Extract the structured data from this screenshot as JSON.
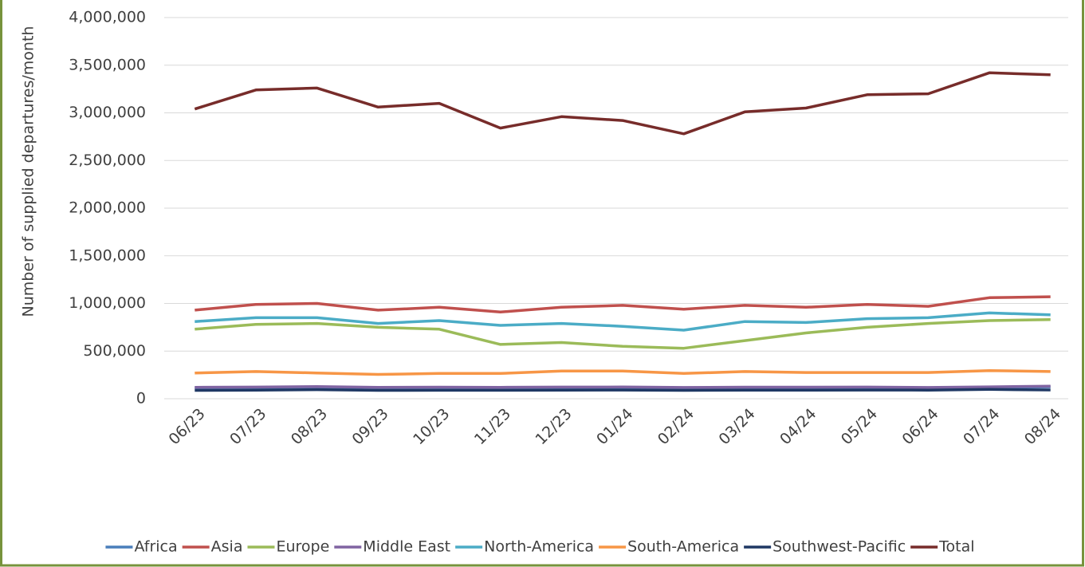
{
  "chart_data": {
    "type": "line",
    "y_label": "Number of supplied departures/month",
    "categories": [
      "06/23",
      "07/23",
      "08/23",
      "09/23",
      "10/23",
      "11/23",
      "12/23",
      "01/24",
      "02/24",
      "03/24",
      "04/24",
      "05/24",
      "06/24",
      "07/24",
      "08/24"
    ],
    "series": [
      {
        "name": "Africa",
        "color": "#4a7ebb",
        "values": [
          115000,
          117000,
          122000,
          115000,
          116000,
          116000,
          117000,
          118000,
          112000,
          116000,
          116000,
          117000,
          112000,
          120000,
          125000
        ]
      },
      {
        "name": "Asia",
        "color": "#c0504d",
        "values": [
          930000,
          990000,
          1000000,
          930000,
          960000,
          910000,
          960000,
          980000,
          940000,
          980000,
          960000,
          990000,
          970000,
          1060000,
          1070000
        ]
      },
      {
        "name": "Europe",
        "color": "#9bbb59",
        "values": [
          730000,
          780000,
          790000,
          750000,
          730000,
          570000,
          590000,
          550000,
          530000,
          610000,
          690000,
          750000,
          790000,
          820000,
          830000
        ]
      },
      {
        "name": "Middle East",
        "color": "#8064a2",
        "values": [
          120000,
          122000,
          128000,
          120000,
          121000,
          120000,
          122000,
          123000,
          118000,
          121000,
          121000,
          122000,
          118000,
          125000,
          132000
        ]
      },
      {
        "name": "North-America",
        "color": "#4bacc6",
        "values": [
          810000,
          850000,
          850000,
          790000,
          820000,
          770000,
          790000,
          760000,
          720000,
          810000,
          800000,
          840000,
          850000,
          900000,
          880000
        ]
      },
      {
        "name": "South-America",
        "color": "#f79646",
        "values": [
          270000,
          285000,
          270000,
          255000,
          265000,
          265000,
          290000,
          290000,
          265000,
          285000,
          275000,
          275000,
          275000,
          295000,
          285000
        ]
      },
      {
        "name": "Southwest-Pacific",
        "color": "#1f3864",
        "values": [
          88000,
          90000,
          95000,
          88000,
          89000,
          89000,
          90000,
          91000,
          88000,
          90000,
          90000,
          91000,
          90000,
          98000,
          92000
        ]
      },
      {
        "name": "Total",
        "color": "#772c2a",
        "values": [
          3040000,
          3240000,
          3260000,
          3060000,
          3100000,
          2840000,
          2960000,
          2920000,
          2780000,
          3010000,
          3050000,
          3190000,
          3200000,
          3420000,
          3400000
        ]
      }
    ],
    "ylim": [
      0,
      4000000
    ],
    "yticks": [
      0,
      {
        "value": 500000,
        "label": "500,000"
      },
      {
        "value": 1000000,
        "label": "1,000,000"
      },
      {
        "value": 1500000,
        "label": "1,500,000"
      },
      {
        "value": 2000000,
        "label": "2,000,000"
      },
      {
        "value": 2500000,
        "label": "2,500,000"
      },
      {
        "value": 3000000,
        "label": "3,000,000"
      },
      {
        "value": 3500000,
        "label": "3,500,000"
      },
      {
        "value": 4000000,
        "label": "4,000,000"
      }
    ],
    "grid": true,
    "legend": "bottom"
  }
}
